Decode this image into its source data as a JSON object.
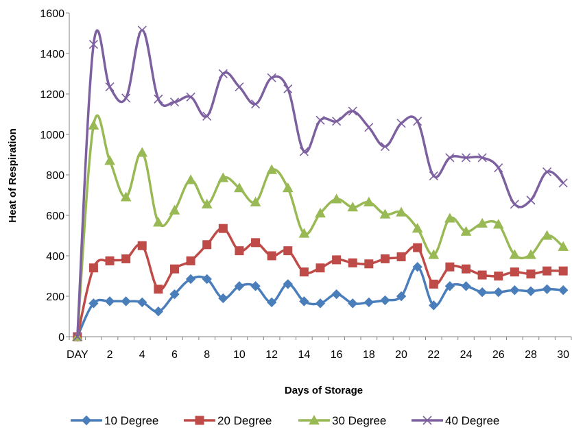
{
  "chart_data": {
    "type": "line",
    "title": "",
    "xlabel": "Days of Storage",
    "ylabel": "Heat of Respiration",
    "ylim": [
      0,
      1600
    ],
    "y_ticks": [
      0,
      200,
      400,
      600,
      800,
      1000,
      1200,
      1400,
      1600
    ],
    "x_tick_labels": [
      {
        "index": 0,
        "label": "DAY"
      },
      {
        "index": 2,
        "label": "2"
      },
      {
        "index": 4,
        "label": "4"
      },
      {
        "index": 6,
        "label": "6"
      },
      {
        "index": 8,
        "label": "8"
      },
      {
        "index": 10,
        "label": "10"
      },
      {
        "index": 12,
        "label": "12"
      },
      {
        "index": 14,
        "label": "14"
      },
      {
        "index": 16,
        "label": "16"
      },
      {
        "index": 18,
        "label": "18"
      },
      {
        "index": 20,
        "label": "20"
      },
      {
        "index": 22,
        "label": "22"
      },
      {
        "index": 24,
        "label": "24"
      },
      {
        "index": 26,
        "label": "26"
      },
      {
        "index": 28,
        "label": "28"
      },
      {
        "index": 30,
        "label": "30"
      }
    ],
    "grid": false,
    "legend": "bottom",
    "smoothed": true,
    "series": [
      {
        "name": "10 Degree",
        "color": "#4a7ebb",
        "marker": "diamond",
        "values": [
          0,
          165,
          175,
          175,
          170,
          125,
          210,
          285,
          285,
          190,
          250,
          250,
          170,
          260,
          175,
          165,
          210,
          165,
          170,
          180,
          200,
          345,
          155,
          250,
          250,
          220,
          220,
          230,
          225,
          235,
          230
        ]
      },
      {
        "name": "20 Degree",
        "color": "#be4b48",
        "marker": "square",
        "values": [
          0,
          340,
          375,
          385,
          450,
          235,
          335,
          375,
          455,
          535,
          425,
          465,
          400,
          425,
          320,
          340,
          380,
          365,
          360,
          385,
          395,
          440,
          260,
          345,
          335,
          305,
          300,
          320,
          310,
          325,
          325
        ]
      },
      {
        "name": "30 Degree",
        "color": "#98b954",
        "marker": "triangle",
        "values": [
          0,
          1045,
          870,
          690,
          910,
          565,
          625,
          775,
          655,
          785,
          735,
          665,
          825,
          735,
          510,
          610,
          680,
          640,
          665,
          605,
          615,
          535,
          405,
          585,
          520,
          560,
          555,
          405,
          405,
          500,
          445
        ]
      },
      {
        "name": "40 Degree",
        "color": "#7d60a0",
        "marker": "x",
        "values": [
          0,
          1445,
          1235,
          1180,
          1515,
          1175,
          1160,
          1185,
          1090,
          1300,
          1235,
          1150,
          1280,
          1225,
          915,
          1070,
          1065,
          1115,
          1035,
          940,
          1055,
          1065,
          795,
          885,
          885,
          885,
          835,
          655,
          675,
          815,
          760
        ]
      }
    ]
  }
}
